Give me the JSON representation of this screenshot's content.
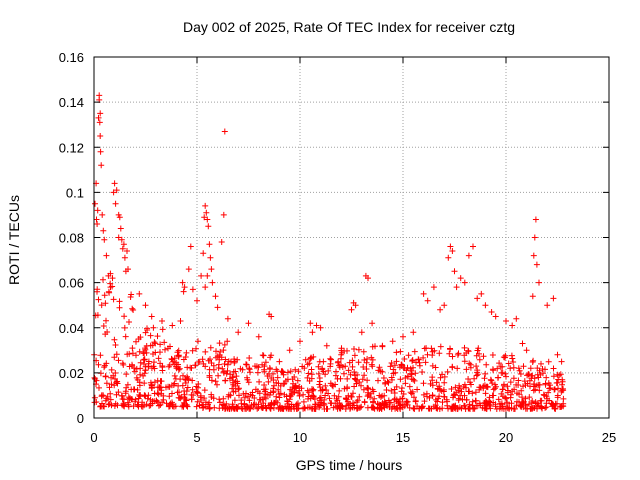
{
  "chart_data": {
    "type": "scatter",
    "title": "Day 002 of 2025, Rate Of TEC Index for receiver cztg",
    "xlabel": "GPS time / hours",
    "ylabel": "ROTI / TECUs",
    "xlim": [
      0,
      25
    ],
    "ylim": [
      0,
      0.16
    ],
    "xticks": [
      0,
      5,
      10,
      15,
      20,
      25
    ],
    "xtick_labels": [
      "0",
      "5",
      "10",
      "15",
      "20",
      "25"
    ],
    "yticks": [
      0,
      0.02,
      0.04,
      0.06,
      0.08,
      0.1,
      0.12,
      0.14,
      0.16
    ],
    "ytick_labels": [
      "0",
      "0.02",
      "0.04",
      "0.06",
      "0.08",
      "0.1",
      "0.12",
      "0.14",
      "0.16"
    ],
    "grid": true,
    "marker": "+",
    "color": "#ff0000",
    "time_range_hours": [
      0,
      22.8
    ],
    "series": [
      {
        "name": "ROTI",
        "points": [
          [
            0.05,
            0.095
          ],
          [
            0.1,
            0.104
          ],
          [
            0.12,
            0.088
          ],
          [
            0.15,
            0.086
          ],
          [
            0.18,
            0.092
          ],
          [
            0.22,
            0.133
          ],
          [
            0.25,
            0.141
          ],
          [
            0.25,
            0.143
          ],
          [
            0.28,
            0.131
          ],
          [
            0.3,
            0.135
          ],
          [
            0.3,
            0.125
          ],
          [
            0.32,
            0.118
          ],
          [
            0.35,
            0.112
          ],
          [
            0.4,
            0.09
          ],
          [
            0.45,
            0.083
          ],
          [
            0.5,
            0.079
          ],
          [
            0.6,
            0.072
          ],
          [
            0.7,
            0.063
          ],
          [
            0.8,
            0.058
          ],
          [
            0.9,
            0.062
          ],
          [
            0.95,
            0.1
          ],
          [
            1.0,
            0.104
          ],
          [
            1.05,
            0.095
          ],
          [
            1.1,
            0.101
          ],
          [
            1.2,
            0.08
          ],
          [
            1.3,
            0.084
          ],
          [
            1.35,
            0.079
          ],
          [
            1.4,
            0.075
          ],
          [
            1.45,
            0.077
          ],
          [
            1.5,
            0.071
          ],
          [
            1.55,
            0.065
          ],
          [
            1.6,
            0.074
          ],
          [
            1.65,
            0.066
          ],
          [
            1.2,
            0.09
          ],
          [
            1.25,
            0.089
          ],
          [
            2.2,
            0.055
          ],
          [
            2.5,
            0.05
          ],
          [
            2.8,
            0.045
          ],
          [
            3.3,
            0.043
          ],
          [
            3.8,
            0.041
          ],
          [
            4.2,
            0.043
          ],
          [
            4.3,
            0.06
          ],
          [
            4.35,
            0.056
          ],
          [
            4.4,
            0.058
          ],
          [
            4.6,
            0.066
          ],
          [
            4.7,
            0.076
          ],
          [
            4.8,
            0.057
          ],
          [
            5.0,
            0.052
          ],
          [
            5.2,
            0.063
          ],
          [
            5.3,
            0.073
          ],
          [
            5.35,
            0.089
          ],
          [
            5.4,
            0.094
          ],
          [
            5.45,
            0.091
          ],
          [
            5.5,
            0.088
          ],
          [
            5.55,
            0.085
          ],
          [
            5.6,
            0.077
          ],
          [
            5.65,
            0.071
          ],
          [
            5.7,
            0.066
          ],
          [
            5.75,
            0.06
          ],
          [
            5.4,
            0.058
          ],
          [
            5.5,
            0.063
          ],
          [
            5.9,
            0.054
          ],
          [
            6.0,
            0.049
          ],
          [
            6.2,
            0.078
          ],
          [
            6.3,
            0.09
          ],
          [
            6.35,
            0.127
          ],
          [
            6.5,
            0.044
          ],
          [
            7.0,
            0.038
          ],
          [
            7.5,
            0.042
          ],
          [
            8.0,
            0.036
          ],
          [
            8.5,
            0.046
          ],
          [
            8.6,
            0.045
          ],
          [
            9.0,
            0.025
          ],
          [
            9.5,
            0.03
          ],
          [
            10.0,
            0.034
          ],
          [
            10.5,
            0.042
          ],
          [
            10.6,
            0.038
          ],
          [
            10.8,
            0.041
          ],
          [
            11.0,
            0.04
          ],
          [
            11.3,
            0.032
          ],
          [
            12.0,
            0.028
          ],
          [
            12.5,
            0.048
          ],
          [
            12.6,
            0.051
          ],
          [
            12.7,
            0.05
          ],
          [
            13.0,
            0.038
          ],
          [
            13.2,
            0.063
          ],
          [
            13.3,
            0.062
          ],
          [
            13.5,
            0.042
          ],
          [
            14.0,
            0.032
          ],
          [
            14.5,
            0.034
          ],
          [
            15.0,
            0.036
          ],
          [
            15.5,
            0.038
          ],
          [
            16.0,
            0.055
          ],
          [
            16.2,
            0.052
          ],
          [
            16.5,
            0.058
          ],
          [
            16.8,
            0.048
          ],
          [
            17.0,
            0.05
          ],
          [
            17.2,
            0.071
          ],
          [
            17.3,
            0.076
          ],
          [
            17.4,
            0.074
          ],
          [
            17.5,
            0.065
          ],
          [
            17.6,
            0.058
          ],
          [
            17.8,
            0.062
          ],
          [
            18.0,
            0.06
          ],
          [
            18.2,
            0.072
          ],
          [
            18.4,
            0.076
          ],
          [
            18.6,
            0.053
          ],
          [
            18.8,
            0.055
          ],
          [
            19.0,
            0.05
          ],
          [
            19.3,
            0.047
          ],
          [
            19.5,
            0.045
          ],
          [
            20.0,
            0.043
          ],
          [
            20.3,
            0.041
          ],
          [
            20.5,
            0.044
          ],
          [
            20.8,
            0.033
          ],
          [
            21.0,
            0.03
          ],
          [
            21.3,
            0.054
          ],
          [
            21.35,
            0.072
          ],
          [
            21.4,
            0.08
          ],
          [
            21.45,
            0.088
          ],
          [
            21.5,
            0.068
          ],
          [
            21.6,
            0.06
          ],
          [
            22.0,
            0.05
          ],
          [
            22.3,
            0.053
          ],
          [
            22.5,
            0.028
          ],
          [
            22.7,
            0.025
          ]
        ],
        "dense_band": {
          "description": "Dense scatter of ROTI values between 0 and 22.8 hours, mostly 0.005-0.03 TECUs",
          "x_range": [
            0,
            22.8
          ],
          "profile": [
            {
              "x": [
                0,
                1
              ],
              "ymin": 0.005,
              "ymax": 0.065
            },
            {
              "x": [
                1,
                2
              ],
              "ymin": 0.005,
              "ymax": 0.055
            },
            {
              "x": [
                2,
                3.5
              ],
              "ymin": 0.005,
              "ymax": 0.04
            },
            {
              "x": [
                3.5,
                5
              ],
              "ymin": 0.005,
              "ymax": 0.032
            },
            {
              "x": [
                5,
                6.5
              ],
              "ymin": 0.004,
              "ymax": 0.035
            },
            {
              "x": [
                6.5,
                8.6
              ],
              "ymin": 0.004,
              "ymax": 0.028
            },
            {
              "x": [
                8.6,
                10
              ],
              "ymin": 0.004,
              "ymax": 0.022
            },
            {
              "x": [
                10,
                12
              ],
              "ymin": 0.004,
              "ymax": 0.028
            },
            {
              "x": [
                12,
                14
              ],
              "ymin": 0.004,
              "ymax": 0.032
            },
            {
              "x": [
                14,
                16
              ],
              "ymin": 0.004,
              "ymax": 0.03
            },
            {
              "x": [
                16,
                19
              ],
              "ymin": 0.004,
              "ymax": 0.032
            },
            {
              "x": [
                19,
                21
              ],
              "ymin": 0.004,
              "ymax": 0.028
            },
            {
              "x": [
                21,
                22.8
              ],
              "ymin": 0.004,
              "ymax": 0.026
            }
          ],
          "count": 1400
        }
      }
    ]
  }
}
